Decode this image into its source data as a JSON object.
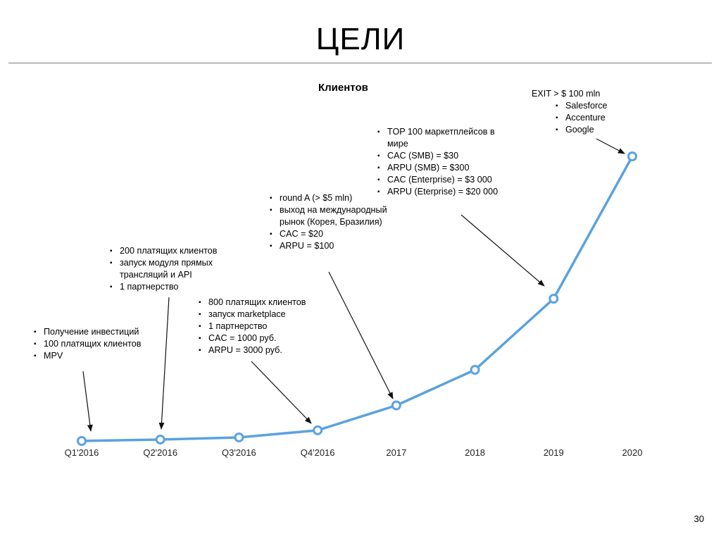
{
  "slide": {
    "title": "ЦЕЛИ",
    "page_number": "30"
  },
  "chart_data": {
    "type": "line",
    "ylabel": "Клиентов",
    "categories": [
      "Q1'2016",
      "Q2'2016",
      "Q3'2016",
      "Q4'2016",
      "2017",
      "2018",
      "2019",
      "2020"
    ],
    "series": [
      {
        "values": [
          0,
          2,
          5,
          15,
          50,
          100,
          200,
          400
        ]
      }
    ],
    "color": "#5aa2e0",
    "grid": false,
    "annotations": [
      {
        "point": "Q1'2016",
        "items": [
          "Получение инвестиций",
          "100 платящих клиентов",
          "MPV"
        ]
      },
      {
        "point": "Q2'2016",
        "items": [
          "200 платящих клиентов",
          "запуск модуля прямых трансляций и API",
          "1 партнерство"
        ]
      },
      {
        "point": "Q4'2016",
        "items": [
          "800 платящих клиентов",
          "запуск marketplace",
          "1 партнерство",
          "CAC = 1000 руб.",
          "ARPU = 3000 руб."
        ]
      },
      {
        "point": "2017",
        "items": [
          "round A (> $5 mln)",
          "выход на международный рынок (Корея, Бразилия)",
          "CAC = $20",
          "ARPU  = $100"
        ]
      },
      {
        "point": "2019",
        "items": [
          "TOP 100 маркетплейсов в мире",
          "CAC (SMB) = $30",
          "ARPU (SMB) = $300",
          "CAC (Enterprise) = $3 000",
          "ARPU (Eterprise) = $20 000"
        ]
      },
      {
        "point": "2020",
        "heading": "EXIT > $ 100 mln",
        "items": [
          "Salesforce",
          "Accenture",
          "Google"
        ]
      }
    ]
  }
}
